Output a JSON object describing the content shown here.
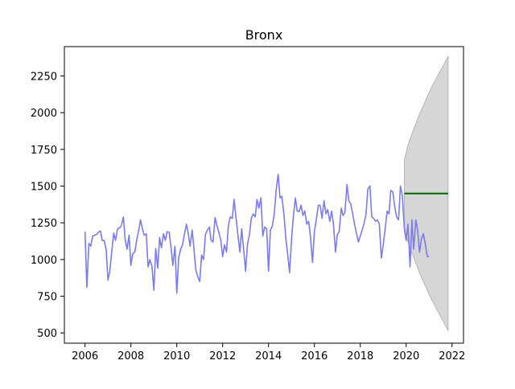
{
  "chart_data": {
    "type": "line",
    "title": "Bronx",
    "xlabel": "",
    "ylabel": "",
    "xlim": [
      2005.1,
      2022.5
    ],
    "ylim": [
      430,
      2450
    ],
    "grid": false,
    "legend": "none",
    "x_ticks": [
      2006,
      2008,
      2010,
      2012,
      2014,
      2016,
      2018,
      2020,
      2022
    ],
    "y_ticks": [
      500,
      750,
      1000,
      1250,
      1500,
      1750,
      2000,
      2250
    ],
    "colors": {
      "history": "#7b7bea",
      "forecast": "#006400",
      "interval": "#d6d6d6",
      "interval_edge": "#aaaaaa"
    },
    "series": [
      {
        "role": "history",
        "x": [
          2006.0,
          2006.08,
          2006.17,
          2006.25,
          2006.33,
          2006.42,
          2006.5,
          2006.58,
          2006.67,
          2006.75,
          2006.83,
          2006.92,
          2007.0,
          2007.08,
          2007.17,
          2007.25,
          2007.33,
          2007.42,
          2007.5,
          2007.58,
          2007.67,
          2007.75,
          2007.83,
          2007.92,
          2008.0,
          2008.08,
          2008.17,
          2008.25,
          2008.33,
          2008.42,
          2008.5,
          2008.58,
          2008.67,
          2008.75,
          2008.83,
          2008.92,
          2009.0,
          2009.08,
          2009.17,
          2009.25,
          2009.33,
          2009.42,
          2009.5,
          2009.58,
          2009.67,
          2009.75,
          2009.83,
          2009.92,
          2010.0,
          2010.08,
          2010.17,
          2010.25,
          2010.33,
          2010.42,
          2010.5,
          2010.58,
          2010.67,
          2010.75,
          2010.83,
          2010.92,
          2011.0,
          2011.08,
          2011.17,
          2011.25,
          2011.33,
          2011.42,
          2011.5,
          2011.58,
          2011.67,
          2011.75,
          2011.83,
          2011.92,
          2012.0,
          2012.08,
          2012.17,
          2012.25,
          2012.33,
          2012.42,
          2012.5,
          2012.58,
          2012.67,
          2012.75,
          2012.83,
          2012.92,
          2013.0,
          2013.08,
          2013.17,
          2013.25,
          2013.33,
          2013.42,
          2013.5,
          2013.58,
          2013.67,
          2013.75,
          2013.83,
          2013.92,
          2014.0,
          2014.08,
          2014.17,
          2014.25,
          2014.33,
          2014.42,
          2014.5,
          2014.58,
          2014.67,
          2014.75,
          2014.83,
          2014.92,
          2015.0,
          2015.08,
          2015.17,
          2015.25,
          2015.33,
          2015.42,
          2015.5,
          2015.58,
          2015.67,
          2015.75,
          2015.83,
          2015.92,
          2016.0,
          2016.08,
          2016.17,
          2016.25,
          2016.33,
          2016.42,
          2016.5,
          2016.58,
          2016.67,
          2016.75,
          2016.83,
          2016.92,
          2017.0,
          2017.08,
          2017.17,
          2017.25,
          2017.33,
          2017.42,
          2017.5,
          2017.58,
          2017.67,
          2017.75,
          2017.83,
          2017.92,
          2018.0,
          2018.08,
          2018.17,
          2018.25,
          2018.33,
          2018.42,
          2018.5,
          2018.58,
          2018.67,
          2018.75,
          2018.83,
          2018.92,
          2019.0,
          2019.08,
          2019.17,
          2019.25,
          2019.33,
          2019.42,
          2019.5,
          2019.58,
          2019.67,
          2019.75,
          2019.83,
          2019.92,
          2020.0,
          2020.08,
          2020.17,
          2020.25,
          2020.33,
          2020.42,
          2020.5,
          2020.58,
          2020.67,
          2020.75,
          2020.83,
          2020.92,
          2021.0
        ],
        "y": [
          1190,
          810,
          1110,
          1090,
          1160,
          1165,
          1170,
          1185,
          1195,
          1130,
          1130,
          1070,
          860,
          920,
          1060,
          1180,
          1130,
          1210,
          1215,
          1230,
          1290,
          1140,
          1070,
          1165,
          960,
          1040,
          1050,
          1130,
          1190,
          1270,
          1210,
          1165,
          1175,
          950,
          1000,
          950,
          790,
          1075,
          940,
          1150,
          1080,
          1175,
          1130,
          1190,
          1185,
          1080,
          960,
          1090,
          770,
          1010,
          1070,
          1100,
          1170,
          1240,
          1180,
          1090,
          1200,
          1070,
          930,
          880,
          850,
          1030,
          1000,
          1170,
          1200,
          1220,
          1130,
          1120,
          1285,
          1230,
          1190,
          1130,
          1020,
          1100,
          1050,
          1230,
          1290,
          1280,
          1410,
          1290,
          1160,
          1050,
          1210,
          1060,
          920,
          1100,
          1170,
          1280,
          1310,
          1290,
          1410,
          1350,
          1420,
          1160,
          1220,
          1210,
          920,
          1200,
          1230,
          1310,
          1470,
          1580,
          1420,
          1430,
          1310,
          1150,
          1040,
          910,
          1130,
          1290,
          1420,
          1330,
          1325,
          1370,
          1300,
          1330,
          1240,
          1260,
          1150,
          980,
          1190,
          1270,
          1370,
          1370,
          1280,
          1400,
          1310,
          1340,
          1260,
          1330,
          1240,
          1050,
          1170,
          1190,
          1350,
          1300,
          1320,
          1510,
          1400,
          1380,
          1310,
          1240,
          1180,
          1120,
          1160,
          1200,
          1250,
          1310,
          1480,
          1500,
          1290,
          1280,
          1260,
          1270,
          1240,
          1010,
          1100,
          1200,
          1330,
          1310,
          1470,
          1460,
          1360,
          1290,
          1270,
          1500,
          1440,
          1210,
          1130,
          1240,
          950,
          1270,
          1070,
          1270,
          1200,
          1050,
          1140,
          1175,
          1110,
          1020,
          1020
        ]
      },
      {
        "role": "forecast",
        "x": [
          2019.92,
          2021.83
        ],
        "y": [
          1450,
          1450
        ]
      }
    ],
    "interval": {
      "x": [
        2019.92,
        2020.08,
        2020.25,
        2020.42,
        2020.58,
        2020.75,
        2020.92,
        2021.08,
        2021.25,
        2021.42,
        2021.58,
        2021.83
      ],
      "upper": [
        1680,
        1780,
        1855,
        1925,
        1990,
        2050,
        2110,
        2165,
        2215,
        2265,
        2310,
        2385
      ],
      "lower": [
        1220,
        1120,
        1045,
        975,
        910,
        850,
        790,
        735,
        685,
        635,
        590,
        515
      ]
    }
  }
}
